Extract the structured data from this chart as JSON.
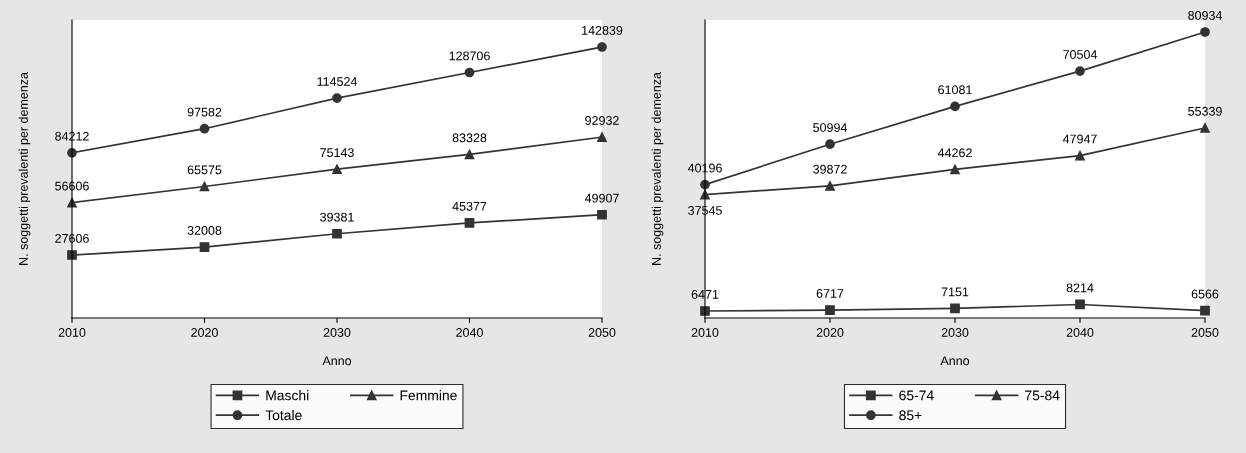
{
  "chart_data": [
    {
      "type": "line",
      "x": [
        2010,
        2020,
        2030,
        2040,
        2050
      ],
      "xlim": [
        2010,
        2050
      ],
      "xticks": [
        2010,
        2020,
        2030,
        2040,
        2050
      ],
      "ylim": [
        -7300,
        157800
      ],
      "xlabel": "Anno",
      "ylabel": "N. soggetti prevalenti per demenza",
      "tick_labels": "x",
      "data_labels": true,
      "legend": "bottom",
      "grid": false,
      "series": [
        {
          "name": "Maschi",
          "color": "#333333",
          "marker": "square",
          "values": [
            27606,
            32008,
            39381,
            45377,
            49907
          ]
        },
        {
          "name": "Femmine",
          "color": "#333333",
          "marker": "triangle",
          "values": [
            56606,
            65575,
            75143,
            83328,
            92932
          ]
        },
        {
          "name": "Totale",
          "color": "#333333",
          "marker": "circle",
          "values": [
            84212,
            97582,
            114524,
            128706,
            142839
          ]
        }
      ]
    },
    {
      "type": "line",
      "x": [
        2010,
        2020,
        2030,
        2040,
        2050
      ],
      "xlim": [
        2010,
        2050
      ],
      "xticks": [
        2010,
        2020,
        2030,
        2040,
        2050
      ],
      "ylim": [
        4600,
        84140
      ],
      "xlabel": "Anno",
      "ylabel": "N. soggetti prevalenti per demenza",
      "tick_labels": "x",
      "data_labels": true,
      "legend": "bottom",
      "grid": false,
      "series": [
        {
          "name": "65-74",
          "color": "#333333",
          "marker": "square",
          "values": [
            6471,
            6717,
            7151,
            8214,
            6566
          ]
        },
        {
          "name": "75-84",
          "color": "#333333",
          "marker": "triangle",
          "values": [
            37545,
            39872,
            44262,
            47947,
            55339
          ]
        },
        {
          "name": "85+",
          "color": "#333333",
          "marker": "circle",
          "values": [
            40196,
            50994,
            61081,
            70504,
            80934
          ]
        }
      ]
    }
  ]
}
